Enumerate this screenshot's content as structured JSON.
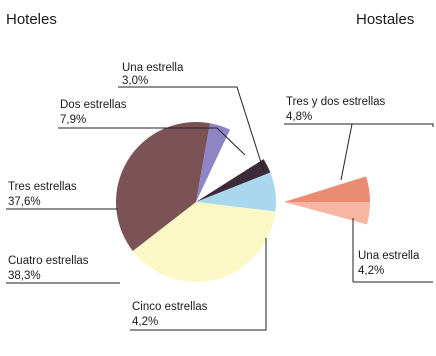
{
  "chart_data": [
    {
      "type": "pie",
      "title": "Hoteles",
      "slices": [
        {
          "label": "Una estrella",
          "value_text": "3,0%",
          "value": 3.0,
          "color": "#3d2b3a"
        },
        {
          "label": "Dos estrellas",
          "value_text": "7,9%",
          "value": 7.9,
          "color": "#a9d8ee"
        },
        {
          "label": "Tres estrellas",
          "value_text": "37,6%",
          "value": 37.6,
          "color": "#fbf8c6"
        },
        {
          "label": "Cuatro estrellas",
          "value_text": "38,3%",
          "value": 38.3,
          "color": "#7b5357"
        },
        {
          "label": "Cinco estrellas",
          "value_text": "4,2%",
          "value": 4.2,
          "color": "#8e86c4"
        }
      ]
    },
    {
      "type": "pie",
      "title": "Hostales",
      "slices": [
        {
          "label": "Tres y dos estrellas",
          "value_text": "4,8%",
          "value": 4.8,
          "color": "#e98c72"
        },
        {
          "label": "Una estrella",
          "value_text": "4,2%",
          "value": 4.2,
          "color": "#f7b6a2"
        }
      ]
    }
  ]
}
